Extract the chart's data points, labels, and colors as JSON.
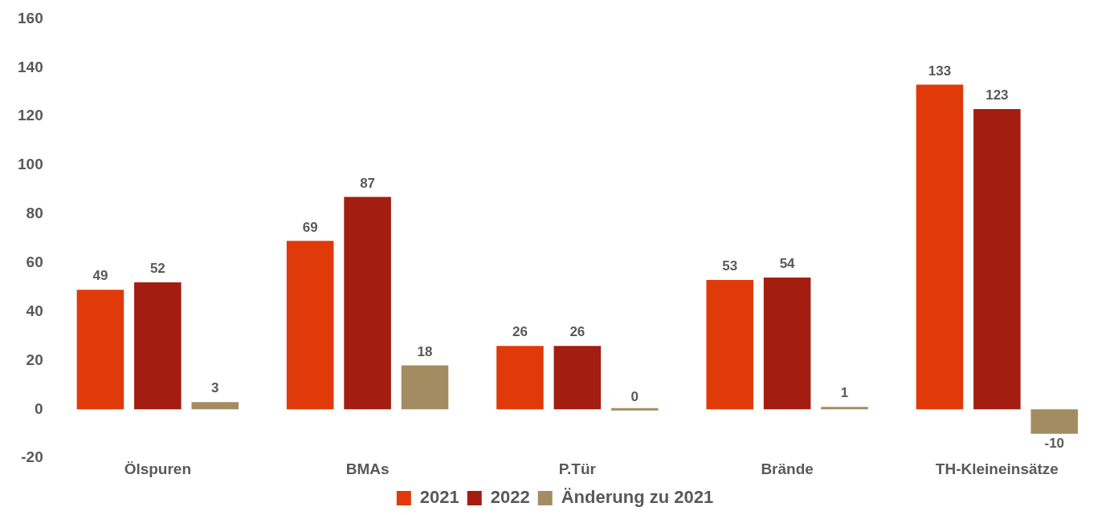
{
  "chart_data": {
    "type": "bar",
    "categories": [
      "Ölspuren",
      "BMAs",
      "P.Tür",
      "Brände",
      "TH-Kleineinsätze"
    ],
    "series": [
      {
        "name": "2021",
        "color": "#e03a0a",
        "values": [
          49,
          69,
          26,
          53,
          133
        ]
      },
      {
        "name": "2022",
        "color": "#a31d10",
        "values": [
          52,
          87,
          26,
          54,
          123
        ]
      },
      {
        "name": "Änderung zu 2021",
        "color": "#a48c62",
        "values": [
          3,
          18,
          0,
          1,
          -10
        ]
      }
    ],
    "ylim": [
      -20,
      160
    ],
    "yticks": [
      -20,
      0,
      20,
      40,
      60,
      80,
      100,
      120,
      140,
      160
    ],
    "grid": false,
    "legend": "bottom",
    "data_labels": true
  }
}
